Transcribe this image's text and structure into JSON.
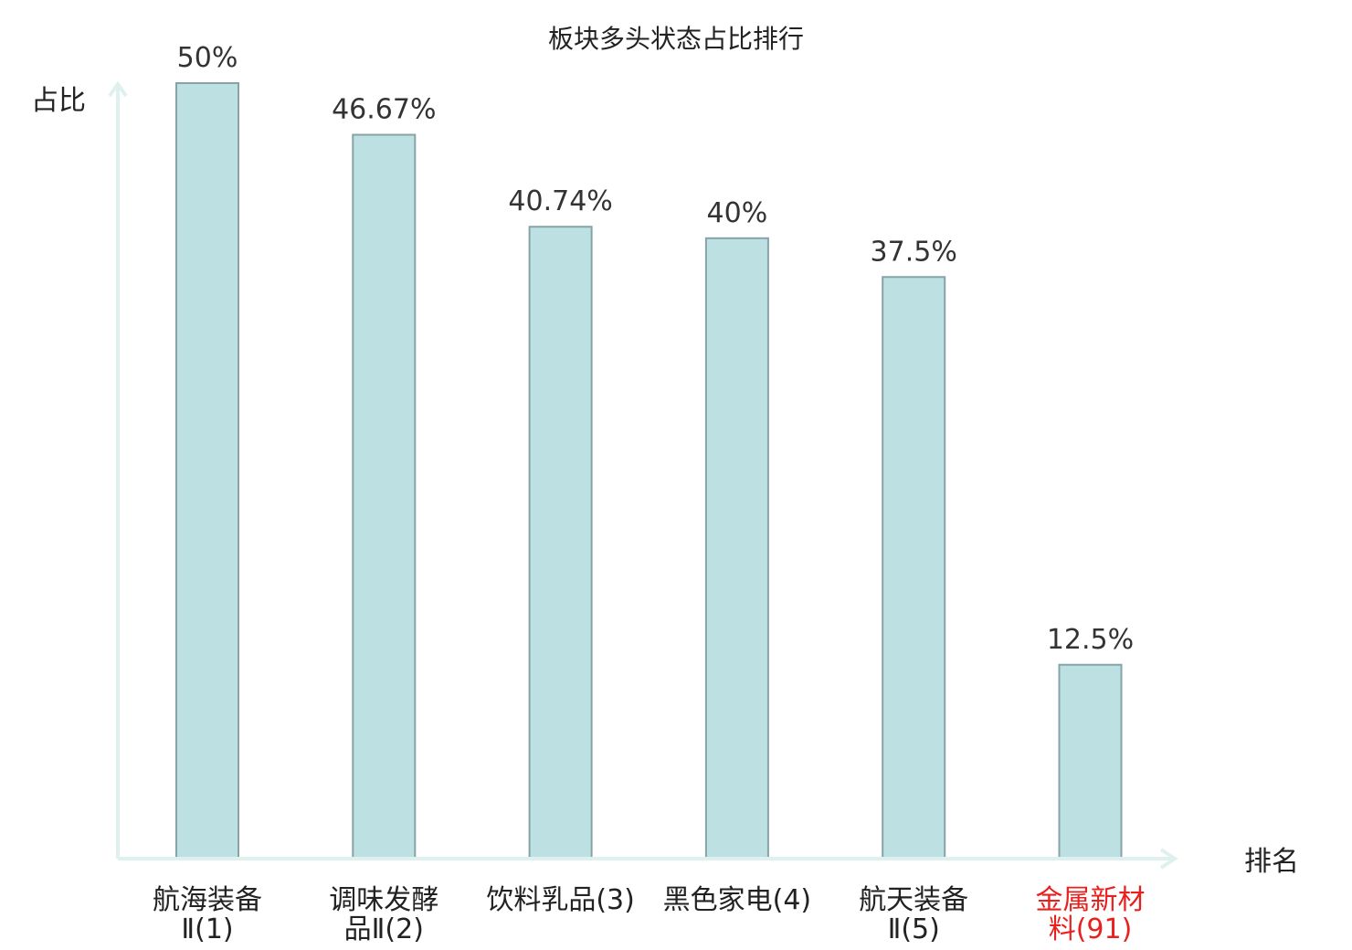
{
  "chart_data": {
    "type": "bar",
    "title": "板块多头状态占比排行",
    "ylabel": "占比",
    "xlabel": "排名",
    "ylim": [
      0,
      50
    ],
    "grid": false,
    "categories": [
      [
        "航海装备",
        "Ⅱ(1)"
      ],
      [
        "调味发酵",
        "品Ⅱ(2)"
      ],
      [
        "饮料乳品(3)"
      ],
      [
        "黑色家电(4)"
      ],
      [
        "航天装备",
        "Ⅱ(5)"
      ],
      [
        "金属新材",
        "料(91)"
      ]
    ],
    "values": [
      50,
      46.67,
      40.74,
      40,
      37.5,
      12.5
    ],
    "value_labels": [
      "50%",
      "46.67%",
      "40.74%",
      "40%",
      "37.5%",
      "12.5%"
    ],
    "highlight_index": 5,
    "colors": {
      "bar_fill": "#bde0e3",
      "bar_stroke": "#86a4a8",
      "axis": "#dff1ee",
      "highlight_text": "#e8201e"
    }
  }
}
